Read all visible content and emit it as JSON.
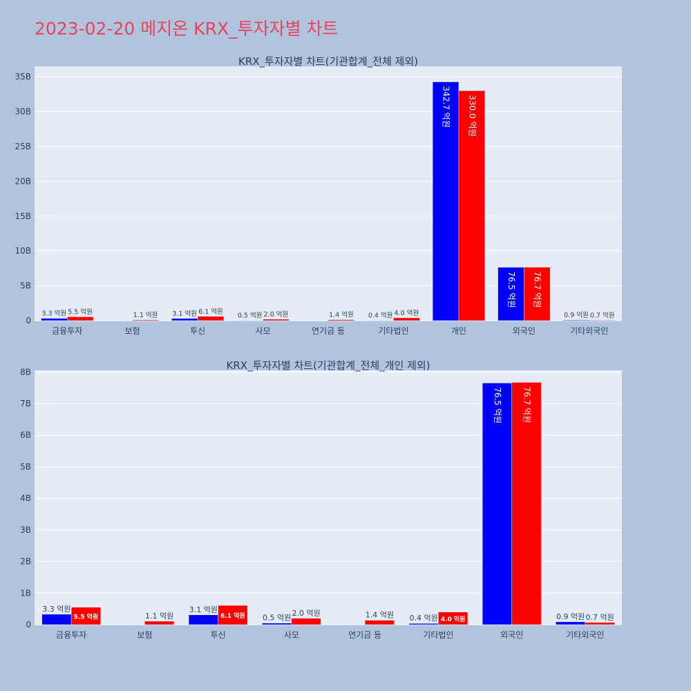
{
  "page": {
    "title": "2023-02-20 메지온 KRX_투자자별 차트"
  },
  "chart_data": [
    {
      "type": "bar",
      "title": "KRX_투자자별 차트(기관합계_전체 제외)",
      "categories": [
        "금융투자",
        "보험",
        "투신",
        "사모",
        "연기금 등",
        "기타법인",
        "개인",
        "외국인",
        "기타외국인"
      ],
      "series": [
        {
          "color": "#0000ff",
          "values": [
            0.33,
            0,
            0.31,
            0.05,
            0,
            0.04,
            34.27,
            7.65,
            0.09
          ],
          "labels": [
            "3.3 억원",
            "",
            "3.1 억원",
            "0.5 억원",
            "",
            "0.4 억원",
            "342.7 억원",
            "76.5 억원",
            "0.9 억원"
          ]
        },
        {
          "color": "#ff0000",
          "values": [
            0.55,
            0.11,
            0.61,
            0.2,
            0.14,
            0.4,
            33.0,
            7.67,
            0.07
          ],
          "labels": [
            "5.5 억원",
            "1.1 억원",
            "6.1 억원",
            "2.0 억원",
            "1.4 억원",
            "4.0 억원",
            "330.0 억원",
            "76.7 억원",
            "0.7 억원"
          ]
        }
      ],
      "ylim": [
        0,
        36.5
      ],
      "yticks": [
        0,
        5,
        10,
        15,
        20,
        25,
        30,
        35
      ],
      "ytick_labels": [
        "0",
        "5B",
        "10B",
        "15B",
        "20B",
        "25B",
        "30B",
        "35B"
      ],
      "grid": true
    },
    {
      "type": "bar",
      "title": "KRX_투자자별 차트(기관합계_전체_개인 제외)",
      "categories": [
        "금융투자",
        "보험",
        "투신",
        "사모",
        "연기금 등",
        "기타법인",
        "외국인",
        "기타외국인"
      ],
      "series": [
        {
          "color": "#0000ff",
          "values": [
            0.33,
            0,
            0.31,
            0.05,
            0,
            0.04,
            7.65,
            0.09
          ],
          "labels": [
            "3.3 억원",
            "",
            "3.1 억원",
            "0.5 억원",
            "",
            "0.4 억원",
            "76.5 억원",
            "0.9 억원"
          ]
        },
        {
          "color": "#ff0000",
          "values": [
            0.55,
            0.11,
            0.61,
            0.2,
            0.14,
            0.4,
            7.67,
            0.07
          ],
          "labels": [
            "5.5 억원",
            "1.1 억원",
            "6.1 억원",
            "2.0 억원",
            "1.4 억원",
            "4.0 억원",
            "76.7 억원",
            "0.7 억원"
          ]
        }
      ],
      "ylim": [
        0,
        8.05
      ],
      "yticks": [
        0,
        1,
        2,
        3,
        4,
        5,
        6,
        7,
        8
      ],
      "ytick_labels": [
        "0",
        "1B",
        "2B",
        "3B",
        "4B",
        "5B",
        "6B",
        "7B",
        "8B"
      ],
      "grid": true
    }
  ]
}
